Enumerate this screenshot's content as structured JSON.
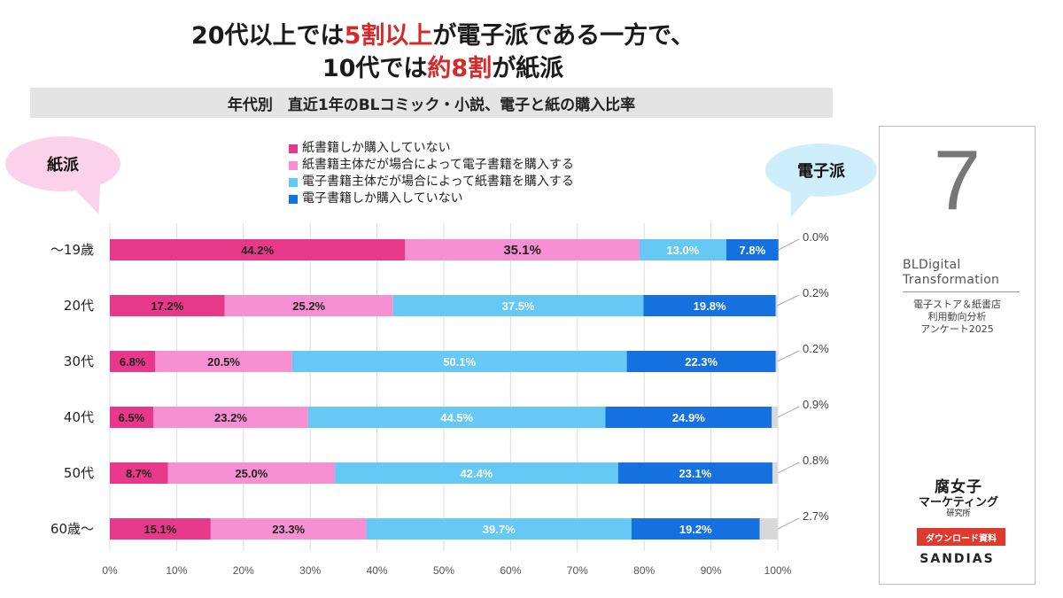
{
  "header": {
    "title_line1_pre": "20代以上では",
    "title_line1_red": "5割以上",
    "title_line1_post": "が電子派である一方で、",
    "title_line2_pre": "10代では",
    "title_line2_red": "約8割",
    "title_line2_post": "が紙派",
    "subtitle": "年代別　直近1年のBLコミック・小説、電子と紙の購入比率"
  },
  "bubbles": {
    "paper": "紙派",
    "digital": "電子派"
  },
  "side_panel": {
    "number": "7",
    "brand_line1": "BLDigital",
    "brand_line2": "Transformation",
    "survey_line1": "電子ストア＆紙書店",
    "survey_line2": "利用動向分析",
    "survey_line3": "アンケート2025",
    "logo_line1": "腐女子",
    "logo_line2": "マーケティング",
    "logo_line3": "研究所",
    "download_label": "ダウンロード資料",
    "company": "SANDIAS"
  },
  "colors": {
    "paper_only": "#e8388a",
    "paper_main": "#f78fd3",
    "digital_main": "#66c8f4",
    "digital_only": "#1570e0",
    "remainder": "#d9d9d9",
    "title_red": "#d42a2a"
  },
  "chart_data": {
    "type": "bar",
    "orientation": "horizontal",
    "stacked": true,
    "categories": [
      "～19歳",
      "20代",
      "30代",
      "40代",
      "50代",
      "60歳～"
    ],
    "series": [
      {
        "name": "紙書籍しか購入していない",
        "values": [
          44.2,
          17.2,
          6.8,
          6.5,
          8.7,
          15.1
        ]
      },
      {
        "name": "紙書籍主体だが場合によって電子書籍を購入する",
        "values": [
          35.1,
          25.2,
          20.5,
          23.2,
          25.0,
          23.3
        ]
      },
      {
        "name": "電子書籍主体だが場合によって紙書籍を購入する",
        "values": [
          13.0,
          37.5,
          50.1,
          44.5,
          42.4,
          39.7
        ]
      },
      {
        "name": "電子書籍しか購入していない",
        "values": [
          7.8,
          19.8,
          22.3,
          24.9,
          23.1,
          19.2
        ]
      }
    ],
    "remainder_values": [
      0.0,
      0.2,
      0.2,
      0.9,
      0.8,
      2.7
    ],
    "value_labels": [
      [
        "44.2%",
        "35.1%",
        "13.0%",
        "7.8%"
      ],
      [
        "17.2%",
        "25.2%",
        "37.5%",
        "19.8%"
      ],
      [
        "6.8%",
        "20.5%",
        "50.1%",
        "22.3%"
      ],
      [
        "6.5%",
        "23.2%",
        "44.5%",
        "24.9%"
      ],
      [
        "8.7%",
        "25.0%",
        "42.4%",
        "23.1%"
      ],
      [
        "15.1%",
        "23.3%",
        "39.7%",
        "19.2%"
      ]
    ],
    "remainder_labels": [
      "0.0%",
      "0.2%",
      "0.2%",
      "0.9%",
      "0.8%",
      "2.7%"
    ],
    "x_ticks": [
      "0%",
      "10%",
      "20%",
      "30%",
      "40%",
      "50%",
      "60%",
      "70%",
      "80%",
      "90%",
      "100%"
    ],
    "xlim": [
      0,
      100
    ],
    "grid": true,
    "legend": "top"
  }
}
